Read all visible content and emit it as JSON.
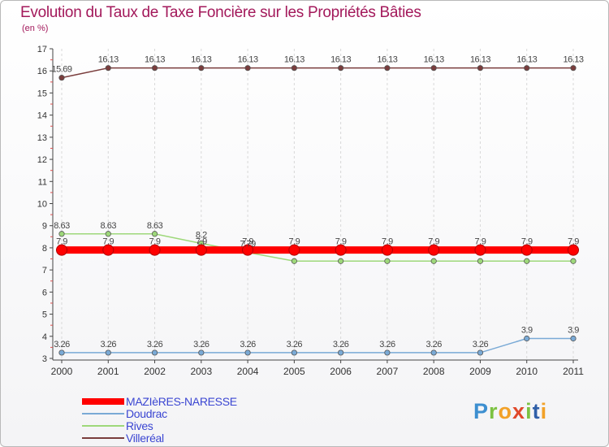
{
  "title": "Evolution du Taux de Taxe Foncière sur les Propriétés Bâties",
  "unit_label": "(en %)",
  "logo": {
    "letters": [
      "P",
      "r",
      "o",
      "x",
      "i",
      "t",
      "i"
    ],
    "colors": [
      "#3d8fd0",
      "#7cc242",
      "#f2a128",
      "#e0492b",
      "#7cc242",
      "#2f5fa8",
      "#f2a128"
    ]
  },
  "chart_data": {
    "type": "line",
    "title": "Evolution du Taux de Taxe Foncière sur les Propriétés Bâties",
    "xlabel": "",
    "ylabel": "(en %)",
    "ylim": [
      3,
      17
    ],
    "yticks": [
      3,
      4,
      5,
      6,
      7,
      8,
      9,
      10,
      11,
      12,
      13,
      14,
      15,
      16,
      17
    ],
    "x": [
      "2000",
      "2001",
      "2002",
      "2003",
      "2004",
      "2005",
      "2006",
      "2007",
      "2008",
      "2009",
      "2010",
      "2011"
    ],
    "series": [
      {
        "name": "MAZIèRES-NARESSE",
        "color": "#ff0000",
        "values": [
          7.9,
          7.9,
          7.9,
          7.9,
          7.9,
          7.9,
          7.9,
          7.9,
          7.9,
          7.9,
          7.9,
          7.9
        ],
        "labels": [
          "7.9",
          "7.9",
          "7.9",
          "7.9",
          "7.9",
          "7.9",
          "7.9",
          "7.9",
          "7.9",
          "7.9",
          "7.9",
          "7.9"
        ]
      },
      {
        "name": "Doudrac",
        "color": "#7aaad6",
        "values": [
          3.26,
          3.26,
          3.26,
          3.26,
          3.26,
          3.26,
          3.26,
          3.26,
          3.26,
          3.26,
          3.9,
          3.9
        ],
        "labels": [
          "3.26",
          "3.26",
          "3.26",
          "3.26",
          "3.26",
          "3.26",
          "3.26",
          "3.26",
          "3.26",
          "3.26",
          "3.9",
          "3.9"
        ]
      },
      {
        "name": "Rives",
        "color": "#9ed87a",
        "values": [
          8.63,
          8.63,
          8.63,
          8.2,
          7.79,
          7.4,
          7.4,
          7.4,
          7.4,
          7.4,
          7.4,
          7.4
        ],
        "labels": [
          "8.63",
          "8.63",
          "8.63",
          "8.2",
          "7.79",
          "",
          "",
          "",
          "",
          "",
          "",
          ""
        ]
      },
      {
        "name": "Villeréal",
        "color": "#7a3d3d",
        "values": [
          15.69,
          16.13,
          16.13,
          16.13,
          16.13,
          16.13,
          16.13,
          16.13,
          16.13,
          16.13,
          16.13,
          16.13
        ],
        "labels": [
          "15.69",
          "16.13",
          "16.13",
          "16.13",
          "16.13",
          "16.13",
          "16.13",
          "16.13",
          "16.13",
          "16.13",
          "16.13",
          "16.13"
        ]
      }
    ]
  }
}
